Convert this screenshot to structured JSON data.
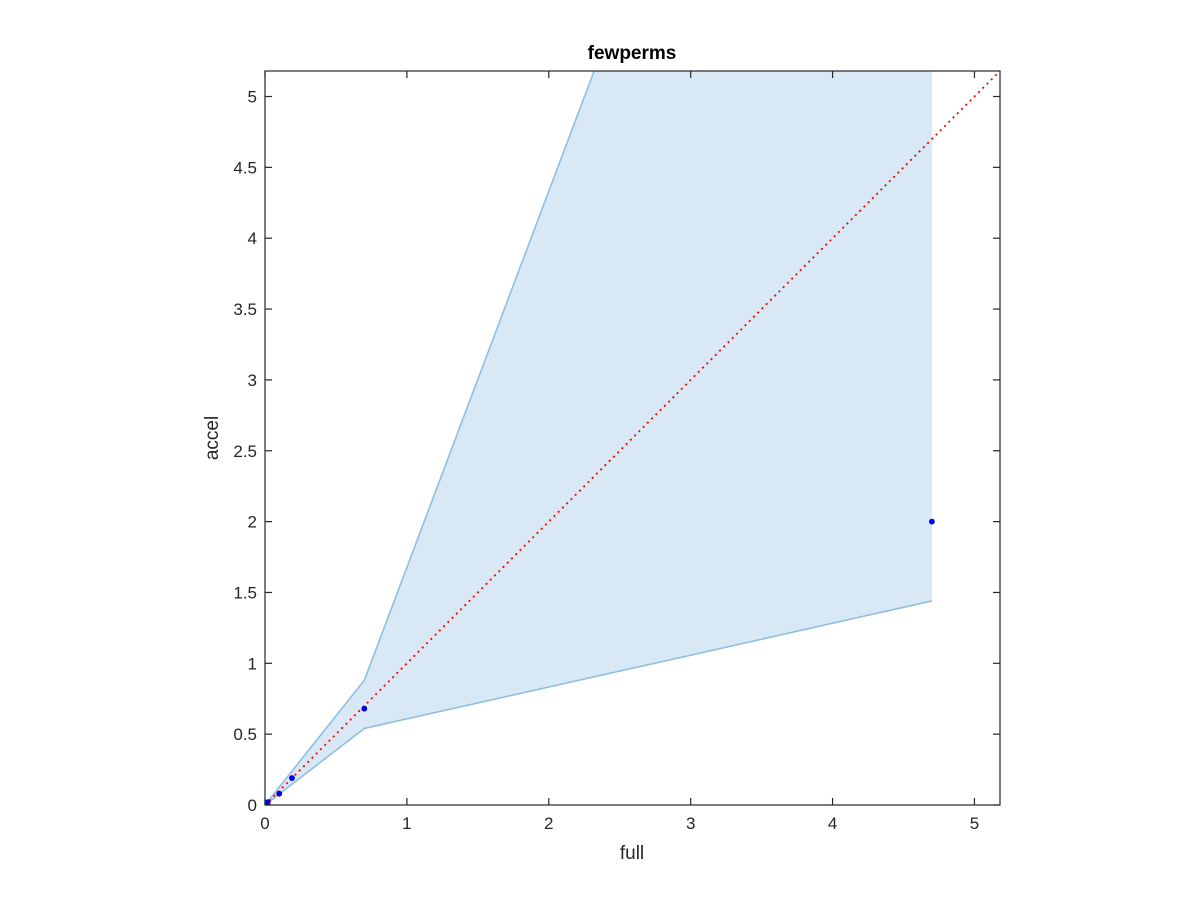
{
  "chart_data": {
    "type": "scatter",
    "title": "fewperms",
    "xlabel": "full",
    "ylabel": "accel",
    "xlim": [
      0,
      5.18
    ],
    "ylim": [
      0,
      5.18
    ],
    "xticks": [
      0,
      1,
      2,
      3,
      4,
      5
    ],
    "yticks": [
      0,
      0.5,
      1,
      1.5,
      2,
      2.5,
      3,
      3.5,
      4,
      4.5,
      5
    ],
    "grid": false,
    "points": {
      "color": "#0000ff",
      "x": [
        0.0,
        0.01,
        0.02,
        0.1,
        0.19,
        0.7,
        4.7
      ],
      "y": [
        0.0,
        0.01,
        0.02,
        0.08,
        0.19,
        0.68,
        2.0
      ]
    },
    "band": {
      "fill_color": "#d9e8f5",
      "edge_color": "#8fbfe0",
      "x": [
        0.0,
        0.7,
        4.7
      ],
      "upper": [
        0.0,
        0.88,
        11.5
      ],
      "lower": [
        0.0,
        0.54,
        1.44
      ]
    },
    "reference_line": {
      "color": "#ff0000",
      "style": "dotted",
      "x": [
        0,
        5.18
      ],
      "y": [
        0,
        5.18
      ]
    }
  }
}
